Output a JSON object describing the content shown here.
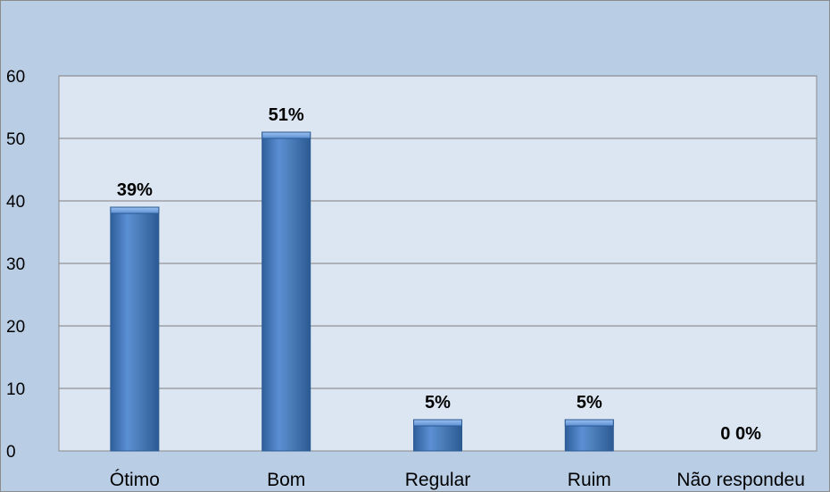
{
  "chart_data": {
    "type": "bar",
    "categories": [
      "Ótimo",
      "Bom",
      "Regular",
      "Ruim",
      "Não respondeu"
    ],
    "values": [
      39,
      51,
      5,
      5,
      0
    ],
    "data_labels": [
      "39%",
      "51%",
      "5%",
      "5%",
      "0 0%"
    ],
    "title": "",
    "xlabel": "",
    "ylabel": "",
    "ylim": [
      0,
      60
    ],
    "yticks": [
      0,
      10,
      20,
      30,
      40,
      50,
      60
    ],
    "grid": true,
    "legend": "none"
  },
  "colors": {
    "chart_background": "#b9cde5",
    "plot_background": "#dce6f2",
    "bar_fill": "#4f81bd",
    "bar_highlight": "#7fa7dc",
    "bar_shadow": "#2c5a93",
    "gridline": "#7f7f7f"
  }
}
